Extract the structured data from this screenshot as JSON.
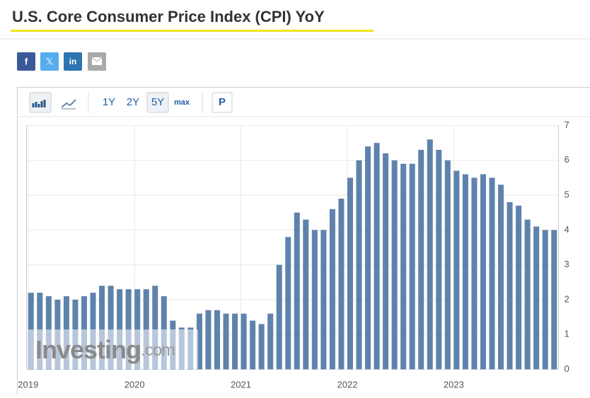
{
  "header": {
    "title": "U.S. Core Consumer Price Index (CPI) YoY"
  },
  "share": [
    "f",
    "𝕏",
    "in"
  ],
  "toolbar": {
    "ranges": [
      "1Y",
      "2Y",
      "5Y",
      "max"
    ],
    "extra": "P"
  },
  "watermark": [
    "Investing",
    ".com"
  ],
  "chart_data": {
    "type": "bar",
    "color": "#5f82ad",
    "grid": true,
    "categories": [
      "2019",
      null,
      null,
      null,
      null,
      null,
      null,
      null,
      null,
      null,
      null,
      null,
      "2020",
      null,
      null,
      null,
      null,
      null,
      null,
      null,
      null,
      null,
      null,
      null,
      "2021",
      null,
      null,
      null,
      null,
      null,
      null,
      null,
      null,
      null,
      null,
      null,
      "2022",
      null,
      null,
      null,
      null,
      null,
      null,
      null,
      null,
      null,
      null,
      null,
      "2023",
      null,
      null,
      null,
      null,
      null,
      null,
      null,
      null,
      null,
      null,
      null
    ],
    "values": [
      2.2,
      2.2,
      2.1,
      2.0,
      2.1,
      2.0,
      2.1,
      2.2,
      2.4,
      2.4,
      2.3,
      2.3,
      2.3,
      2.3,
      2.4,
      2.1,
      1.4,
      1.2,
      1.2,
      1.6,
      1.7,
      1.7,
      1.6,
      1.6,
      1.6,
      1.4,
      1.3,
      1.6,
      3.0,
      3.8,
      4.5,
      4.3,
      4.0,
      4.0,
      4.6,
      4.9,
      5.5,
      6.0,
      6.4,
      6.5,
      6.2,
      6.0,
      5.9,
      5.9,
      6.3,
      6.6,
      6.3,
      6.0,
      5.7,
      5.6,
      5.5,
      5.6,
      5.5,
      5.3,
      4.8,
      4.7,
      4.3,
      4.1,
      4.0,
      4.0
    ],
    "ylim": [
      0,
      7
    ],
    "yticks": [
      0,
      1,
      2,
      3,
      4,
      5,
      6,
      7
    ]
  }
}
